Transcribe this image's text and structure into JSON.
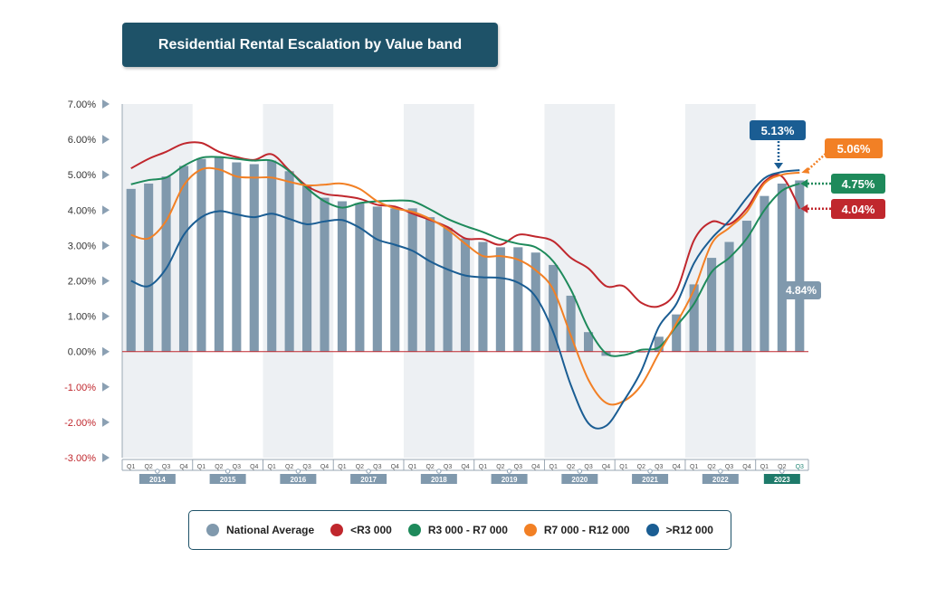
{
  "title": "Residential Rental Escalation by Value band",
  "colors": {
    "title_bg": "#1e5268",
    "bar": "#8099ad",
    "lt_r3000": "#c0272d",
    "r3000_r7000": "#1e8a5b",
    "r7000_r12000": "#f28025",
    "gt_r12000": "#1a5d93",
    "zero_line": "#c0272d",
    "shade": "#edf0f3"
  },
  "callouts": {
    "gt_r12000": "5.13%",
    "r7000_r12000": "5.06%",
    "r3000_r7000": "4.75%",
    "lt_r3000": "4.04%",
    "national": "4.84%"
  },
  "legend": [
    {
      "label": "National Average",
      "color": "#8099ad"
    },
    {
      "label": "<R3 000",
      "color": "#c0272d"
    },
    {
      "label": "R3 000 - R7 000",
      "color": "#1e8a5b"
    },
    {
      "label": "R7 000 - R12 000",
      "color": "#f28025"
    },
    {
      "label": ">R12 000",
      "color": "#1a5d93"
    }
  ],
  "chart_data": {
    "type": "bar+line",
    "ylim": [
      -3,
      7
    ],
    "y_ticks": [
      "7.00%",
      "6.00%",
      "5.00%",
      "4.00%",
      "3.00%",
      "2.00%",
      "1.00%",
      "0.00%",
      "-1.00%",
      "-2.00%",
      "-3.00%"
    ],
    "quarter_labels": [
      "Q1",
      "Q2",
      "Q3",
      "Q4",
      "Q1",
      "Q2",
      "Q3",
      "Q4",
      "Q1",
      "Q2",
      "Q3",
      "Q4",
      "Q1",
      "Q2",
      "Q3",
      "Q4",
      "Q1",
      "Q2",
      "Q3",
      "Q4",
      "Q1",
      "Q2",
      "Q3",
      "Q4",
      "Q1",
      "Q2",
      "Q3",
      "Q4",
      "Q1",
      "Q2",
      "Q3",
      "Q4",
      "Q1",
      "Q2",
      "Q3",
      "Q4",
      "Q1",
      "Q2",
      "Q3"
    ],
    "years": [
      "2014",
      "2015",
      "2016",
      "2017",
      "2018",
      "2019",
      "2020",
      "2021",
      "2022",
      "2023"
    ],
    "series": [
      {
        "name": "National Average",
        "kind": "bar",
        "values": [
          4.6,
          4.75,
          4.95,
          5.25,
          5.45,
          5.5,
          5.35,
          5.3,
          5.4,
          5.1,
          4.7,
          4.35,
          4.25,
          4.2,
          4.1,
          4.05,
          4.05,
          3.8,
          3.5,
          3.2,
          3.1,
          2.95,
          2.95,
          2.8,
          2.45,
          1.58,
          0.55,
          -0.12,
          0.0,
          0.0,
          0.42,
          1.05,
          1.9,
          2.65,
          3.1,
          3.7,
          4.4,
          4.75,
          4.84
        ]
      },
      {
        "name": "<R3 000",
        "kind": "line",
        "values": [
          5.18,
          5.45,
          5.65,
          5.88,
          5.9,
          5.65,
          5.5,
          5.42,
          5.58,
          5.12,
          4.68,
          4.46,
          4.4,
          4.32,
          4.15,
          4.1,
          3.9,
          3.72,
          3.52,
          3.2,
          3.18,
          3.02,
          3.3,
          3.25,
          3.12,
          2.65,
          2.35,
          1.85,
          1.85,
          1.38,
          1.28,
          1.72,
          3.15,
          3.67,
          3.6,
          4.05,
          4.8,
          4.95,
          4.04
        ]
      },
      {
        "name": "R3 000 - R7 000",
        "kind": "line",
        "values": [
          4.73,
          4.85,
          4.92,
          5.25,
          5.48,
          5.5,
          5.45,
          5.4,
          5.4,
          5.1,
          4.62,
          4.25,
          4.07,
          4.2,
          4.25,
          4.27,
          4.25,
          4.02,
          3.75,
          3.55,
          3.38,
          3.18,
          3.05,
          2.95,
          2.55,
          1.75,
          0.65,
          -0.05,
          -0.1,
          0.05,
          0.12,
          0.72,
          1.35,
          2.25,
          2.65,
          3.2,
          4.0,
          4.55,
          4.75
        ]
      },
      {
        "name": "R7 000 - R12 000",
        "kind": "line",
        "values": [
          3.3,
          3.2,
          3.7,
          4.7,
          5.15,
          5.15,
          4.95,
          4.92,
          4.92,
          4.8,
          4.7,
          4.72,
          4.75,
          4.6,
          4.25,
          4.05,
          3.95,
          3.75,
          3.45,
          3.05,
          2.7,
          2.7,
          2.6,
          2.3,
          1.75,
          0.45,
          -0.8,
          -1.45,
          -1.4,
          -0.95,
          -0.05,
          0.8,
          1.75,
          3.05,
          3.5,
          3.95,
          4.75,
          5.0,
          5.06
        ]
      },
      {
        "name": ">R12 000",
        "kind": "line",
        "values": [
          2.0,
          1.85,
          2.35,
          3.3,
          3.8,
          3.97,
          3.88,
          3.8,
          3.9,
          3.75,
          3.6,
          3.68,
          3.72,
          3.5,
          3.17,
          3.02,
          2.85,
          2.55,
          2.32,
          2.15,
          2.1,
          2.08,
          1.95,
          1.55,
          0.55,
          -0.95,
          -2.03,
          -2.1,
          -1.4,
          -0.55,
          0.7,
          1.35,
          2.5,
          3.2,
          3.7,
          4.35,
          4.9,
          5.08,
          5.13
        ]
      }
    ]
  }
}
